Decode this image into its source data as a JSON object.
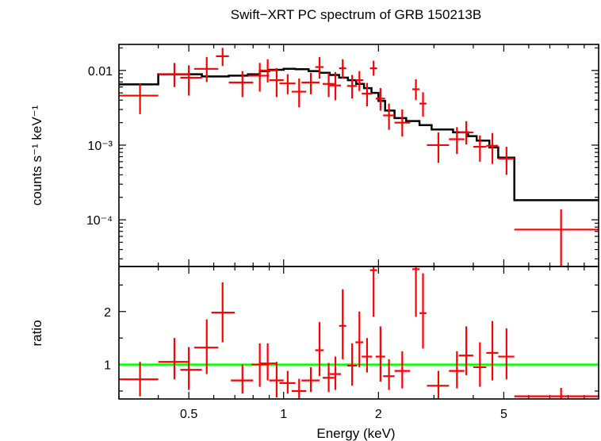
{
  "chart_data": [
    {
      "type": "scatter",
      "title": "Swift−XRT PC spectrum of GRB 150213B",
      "ylabel": "counts s⁻¹ keV⁻¹",
      "xlabel": "",
      "xscale": "log",
      "yscale": "log",
      "xlim": [
        0.3,
        10
      ],
      "ylim": [
        2.37e-05,
        0.0223
      ],
      "yticks": [
        {
          "value": 0.01,
          "label": "0.01"
        },
        {
          "value": 0.001,
          "label": "10⁻³"
        },
        {
          "value": 0.0001,
          "label": "10⁻⁴"
        }
      ],
      "colors": {
        "data": "#ff0000",
        "model": "#000000"
      },
      "series": [
        {
          "role": "data",
          "points": [
            {
              "x": 0.35,
              "xlo": 0.3,
              "xhi": 0.4,
              "y": 0.0046,
              "ylo": 0.0026,
              "yhi": 0.0066
            },
            {
              "x": 0.45,
              "xlo": 0.4,
              "xhi": 0.5,
              "y": 0.0089,
              "ylo": 0.006,
              "yhi": 0.0126
            },
            {
              "x": 0.5,
              "xlo": 0.47,
              "xhi": 0.55,
              "y": 0.008,
              "ylo": 0.0046,
              "yhi": 0.0117
            },
            {
              "x": 0.57,
              "xlo": 0.52,
              "xhi": 0.62,
              "y": 0.0105,
              "ylo": 0.007,
              "yhi": 0.0151
            },
            {
              "x": 0.64,
              "xlo": 0.61,
              "xhi": 0.67,
              "y": 0.0155,
              "ylo": 0.0115,
              "yhi": 0.02
            },
            {
              "x": 0.74,
              "xlo": 0.67,
              "xhi": 0.8,
              "y": 0.0069,
              "ylo": 0.0044,
              "yhi": 0.0098
            },
            {
              "x": 0.84,
              "xlo": 0.77,
              "xhi": 0.9,
              "y": 0.0085,
              "ylo": 0.0052,
              "yhi": 0.0126
            },
            {
              "x": 0.89,
              "xlo": 0.84,
              "xhi": 0.95,
              "y": 0.01,
              "ylo": 0.0069,
              "yhi": 0.0141
            },
            {
              "x": 0.95,
              "xlo": 0.9,
              "xhi": 1.0,
              "y": 0.0074,
              "ylo": 0.0044,
              "yhi": 0.0107
            },
            {
              "x": 1.03,
              "xlo": 0.97,
              "xhi": 1.09,
              "y": 0.0067,
              "ylo": 0.0048,
              "yhi": 0.0089
            },
            {
              "x": 1.12,
              "xlo": 1.06,
              "xhi": 1.18,
              "y": 0.0052,
              "ylo": 0.0032,
              "yhi": 0.0078
            },
            {
              "x": 1.22,
              "xlo": 1.14,
              "xhi": 1.3,
              "y": 0.0069,
              "ylo": 0.0048,
              "yhi": 0.0093
            },
            {
              "x": 1.3,
              "xlo": 1.26,
              "xhi": 1.34,
              "y": 0.0111,
              "ylo": 0.0078,
              "yhi": 0.0151
            },
            {
              "x": 1.39,
              "xlo": 1.33,
              "xhi": 1.45,
              "y": 0.0066,
              "ylo": 0.0044,
              "yhi": 0.0093
            },
            {
              "x": 1.46,
              "xlo": 1.4,
              "xhi": 1.52,
              "y": 0.0063,
              "ylo": 0.004,
              "yhi": 0.0095
            },
            {
              "x": 1.54,
              "xlo": 1.5,
              "xhi": 1.58,
              "y": 0.0107,
              "ylo": 0.0078,
              "yhi": 0.0141
            },
            {
              "x": 1.65,
              "xlo": 1.59,
              "xhi": 1.71,
              "y": 0.0062,
              "ylo": 0.0042,
              "yhi": 0.0087
            },
            {
              "x": 1.74,
              "xlo": 1.69,
              "xhi": 1.79,
              "y": 0.0074,
              "ylo": 0.0053,
              "yhi": 0.0098
            },
            {
              "x": 1.84,
              "xlo": 1.77,
              "xhi": 1.91,
              "y": 0.0049,
              "ylo": 0.0033,
              "yhi": 0.0068
            },
            {
              "x": 1.93,
              "xlo": 1.88,
              "xhi": 1.98,
              "y": 0.0107,
              "ylo": 0.0085,
              "yhi": 0.0135
            },
            {
              "x": 2.03,
              "xlo": 1.96,
              "xhi": 2.1,
              "y": 0.0042,
              "ylo": 0.0029,
              "yhi": 0.0058
            },
            {
              "x": 2.16,
              "xlo": 2.07,
              "xhi": 2.25,
              "y": 0.0025,
              "ylo": 0.0016,
              "yhi": 0.0036
            },
            {
              "x": 2.38,
              "xlo": 2.25,
              "xhi": 2.52,
              "y": 0.002,
              "ylo": 0.0013,
              "yhi": 0.003
            },
            {
              "x": 2.63,
              "xlo": 2.56,
              "xhi": 2.7,
              "y": 0.0056,
              "ylo": 0.004,
              "yhi": 0.0076
            },
            {
              "x": 2.77,
              "xlo": 2.7,
              "xhi": 2.84,
              "y": 0.0036,
              "ylo": 0.0024,
              "yhi": 0.0051
            },
            {
              "x": 3.1,
              "xlo": 2.85,
              "xhi": 3.35,
              "y": 0.001,
              "ylo": 0.00058,
              "yhi": 0.00148
            },
            {
              "x": 3.55,
              "xlo": 3.35,
              "xhi": 3.75,
              "y": 0.0012,
              "ylo": 0.00076,
              "yhi": 0.00174
            },
            {
              "x": 3.8,
              "xlo": 3.6,
              "xhi": 4.0,
              "y": 0.00148,
              "ylo": 0.00102,
              "yhi": 0.00209
            },
            {
              "x": 4.2,
              "xlo": 4.0,
              "xhi": 4.4,
              "y": 0.00095,
              "ylo": 0.0006,
              "yhi": 0.00135
            },
            {
              "x": 4.6,
              "xlo": 4.4,
              "xhi": 4.8,
              "y": 0.00098,
              "ylo": 0.00056,
              "yhi": 0.00145
            },
            {
              "x": 5.1,
              "xlo": 4.8,
              "xhi": 5.4,
              "y": 0.00066,
              "ylo": 0.0004,
              "yhi": 0.00095
            },
            {
              "x": 7.6,
              "xlo": 5.4,
              "xhi": 10.0,
              "y": 7.4e-05,
              "ylo": 2.4e-05,
              "yhi": 0.000138
            }
          ]
        },
        {
          "role": "model",
          "steps": [
            {
              "x0": 0.3,
              "x1": 0.4,
              "y": 0.0065
            },
            {
              "x0": 0.4,
              "x1": 0.55,
              "y": 0.0089
            },
            {
              "x0": 0.55,
              "x1": 0.67,
              "y": 0.0083
            },
            {
              "x0": 0.67,
              "x1": 0.77,
              "y": 0.0085
            },
            {
              "x0": 0.77,
              "x1": 0.84,
              "y": 0.0089
            },
            {
              "x0": 0.84,
              "x1": 0.9,
              "y": 0.0098
            },
            {
              "x0": 0.9,
              "x1": 1.0,
              "y": 0.0102
            },
            {
              "x0": 1.0,
              "x1": 1.09,
              "y": 0.0105
            },
            {
              "x0": 1.09,
              "x1": 1.2,
              "y": 0.0104
            },
            {
              "x0": 1.2,
              "x1": 1.3,
              "y": 0.0098
            },
            {
              "x0": 1.3,
              "x1": 1.4,
              "y": 0.0093
            },
            {
              "x0": 1.4,
              "x1": 1.5,
              "y": 0.0087
            },
            {
              "x0": 1.5,
              "x1": 1.6,
              "y": 0.008
            },
            {
              "x0": 1.6,
              "x1": 1.7,
              "y": 0.0074
            },
            {
              "x0": 1.7,
              "x1": 1.8,
              "y": 0.0066
            },
            {
              "x0": 1.8,
              "x1": 1.9,
              "y": 0.0058
            },
            {
              "x0": 1.9,
              "x1": 2.0,
              "y": 0.005
            },
            {
              "x0": 2.0,
              "x1": 2.1,
              "y": 0.0039
            },
            {
              "x0": 2.1,
              "x1": 2.25,
              "y": 0.0029
            },
            {
              "x0": 2.25,
              "x1": 2.45,
              "y": 0.0023
            },
            {
              "x0": 2.45,
              "x1": 2.7,
              "y": 0.0021
            },
            {
              "x0": 2.7,
              "x1": 2.95,
              "y": 0.00185
            },
            {
              "x0": 2.95,
              "x1": 3.45,
              "y": 0.00162
            },
            {
              "x0": 3.45,
              "x1": 3.85,
              "y": 0.00148
            },
            {
              "x0": 3.85,
              "x1": 4.1,
              "y": 0.00132
            },
            {
              "x0": 4.1,
              "x1": 4.5,
              "y": 0.00115
            },
            {
              "x0": 4.5,
              "x1": 4.8,
              "y": 0.00093
            },
            {
              "x0": 4.8,
              "x1": 5.4,
              "y": 0.00068
            },
            {
              "x0": 5.4,
              "x1": 10.0,
              "y": 0.000183
            }
          ]
        }
      ]
    },
    {
      "type": "scatter",
      "xlabel": "Energy (keV)",
      "ylabel": "ratio",
      "xscale": "log",
      "xlim": [
        0.3,
        10
      ],
      "ylim": [
        0.35,
        2.85
      ],
      "xticks": [
        {
          "value": 0.5,
          "label": "0.5"
        },
        {
          "value": 1,
          "label": "1"
        },
        {
          "value": 2,
          "label": "2"
        },
        {
          "value": 5,
          "label": "5"
        }
      ],
      "yticks": [
        {
          "value": 1,
          "label": "1"
        },
        {
          "value": 2,
          "label": "2"
        }
      ],
      "reference_line": {
        "y": 1,
        "color": "#00ff00"
      },
      "colors": {
        "data": "#ff0000"
      },
      "series": [
        {
          "role": "ratio",
          "points": [
            {
              "x": 0.35,
              "xlo": 0.3,
              "xhi": 0.4,
              "y": 0.72,
              "ylo": 0.4,
              "yhi": 1.05
            },
            {
              "x": 0.45,
              "xlo": 0.4,
              "xhi": 0.5,
              "y": 1.05,
              "ylo": 0.72,
              "yhi": 1.5
            },
            {
              "x": 0.5,
              "xlo": 0.47,
              "xhi": 0.55,
              "y": 0.9,
              "ylo": 0.52,
              "yhi": 1.33
            },
            {
              "x": 0.57,
              "xlo": 0.52,
              "xhi": 0.62,
              "y": 1.32,
              "ylo": 0.82,
              "yhi": 1.85
            },
            {
              "x": 0.64,
              "xlo": 0.59,
              "xhi": 0.7,
              "y": 1.98,
              "ylo": 1.42,
              "yhi": 2.55
            },
            {
              "x": 0.74,
              "xlo": 0.68,
              "xhi": 0.8,
              "y": 0.7,
              "ylo": 0.45,
              "yhi": 1.0
            },
            {
              "x": 0.84,
              "xlo": 0.79,
              "xhi": 0.9,
              "y": 1.0,
              "ylo": 0.58,
              "yhi": 1.4
            },
            {
              "x": 0.89,
              "xlo": 0.84,
              "xhi": 0.95,
              "y": 1.02,
              "ylo": 0.7,
              "yhi": 1.4
            },
            {
              "x": 0.95,
              "xlo": 0.9,
              "xhi": 1.0,
              "y": 0.7,
              "ylo": 0.38,
              "yhi": 1.05
            },
            {
              "x": 1.03,
              "xlo": 0.97,
              "xhi": 1.09,
              "y": 0.65,
              "ylo": 0.45,
              "yhi": 0.88
            },
            {
              "x": 1.12,
              "xlo": 1.06,
              "xhi": 1.18,
              "y": 0.5,
              "ylo": 0.31,
              "yhi": 0.73
            },
            {
              "x": 1.22,
              "xlo": 1.14,
              "xhi": 1.3,
              "y": 0.7,
              "ylo": 0.48,
              "yhi": 0.95
            },
            {
              "x": 1.3,
              "xlo": 1.26,
              "xhi": 1.34,
              "y": 1.27,
              "ylo": 0.78,
              "yhi": 1.8
            },
            {
              "x": 1.39,
              "xlo": 1.33,
              "xhi": 1.45,
              "y": 0.75,
              "ylo": 0.48,
              "yhi": 1.03
            },
            {
              "x": 1.46,
              "xlo": 1.4,
              "xhi": 1.52,
              "y": 0.82,
              "ylo": 0.52,
              "yhi": 1.15
            },
            {
              "x": 1.54,
              "xlo": 1.5,
              "xhi": 1.58,
              "y": 1.73,
              "ylo": 1.1,
              "yhi": 2.42
            },
            {
              "x": 1.65,
              "xlo": 1.59,
              "xhi": 1.71,
              "y": 0.98,
              "ylo": 0.6,
              "yhi": 1.4
            },
            {
              "x": 1.74,
              "xlo": 1.69,
              "xhi": 1.79,
              "y": 1.42,
              "ylo": 0.95,
              "yhi": 2.0
            },
            {
              "x": 1.84,
              "xlo": 1.77,
              "xhi": 1.91,
              "y": 1.15,
              "ylo": 0.85,
              "yhi": 1.5
            },
            {
              "x": 1.93,
              "xlo": 1.88,
              "xhi": 1.98,
              "y": 2.78,
              "ylo": 1.9,
              "yhi": 2.85
            },
            {
              "x": 2.03,
              "xlo": 1.96,
              "xhi": 2.1,
              "y": 1.15,
              "ylo": 0.68,
              "yhi": 1.72
            },
            {
              "x": 2.16,
              "xlo": 2.07,
              "xhi": 2.25,
              "y": 0.78,
              "ylo": 0.52,
              "yhi": 1.1
            },
            {
              "x": 2.38,
              "xlo": 2.25,
              "xhi": 2.52,
              "y": 0.88,
              "ylo": 0.55,
              "yhi": 1.25
            },
            {
              "x": 2.63,
              "xlo": 2.56,
              "xhi": 2.7,
              "y": 2.8,
              "ylo": 1.9,
              "yhi": 2.85
            },
            {
              "x": 2.77,
              "xlo": 2.7,
              "xhi": 2.84,
              "y": 1.97,
              "ylo": 1.3,
              "yhi": 2.72
            },
            {
              "x": 3.1,
              "xlo": 2.85,
              "xhi": 3.35,
              "y": 0.6,
              "ylo": 0.36,
              "yhi": 0.88
            },
            {
              "x": 3.55,
              "xlo": 3.35,
              "xhi": 3.75,
              "y": 0.88,
              "ylo": 0.55,
              "yhi": 1.25
            },
            {
              "x": 3.8,
              "xlo": 3.6,
              "xhi": 4.0,
              "y": 1.17,
              "ylo": 0.8,
              "yhi": 1.72
            },
            {
              "x": 4.2,
              "xlo": 4.0,
              "xhi": 4.4,
              "y": 0.95,
              "ylo": 0.58,
              "yhi": 1.42
            },
            {
              "x": 4.6,
              "xlo": 4.4,
              "xhi": 4.8,
              "y": 1.22,
              "ylo": 0.7,
              "yhi": 1.82
            },
            {
              "x": 5.1,
              "xlo": 4.8,
              "xhi": 5.4,
              "y": 1.15,
              "ylo": 0.72,
              "yhi": 1.68
            },
            {
              "x": 7.6,
              "xlo": 5.4,
              "xhi": 10.0,
              "y": 0.4,
              "ylo": 0.3,
              "yhi": 0.56
            }
          ]
        }
      ]
    }
  ]
}
